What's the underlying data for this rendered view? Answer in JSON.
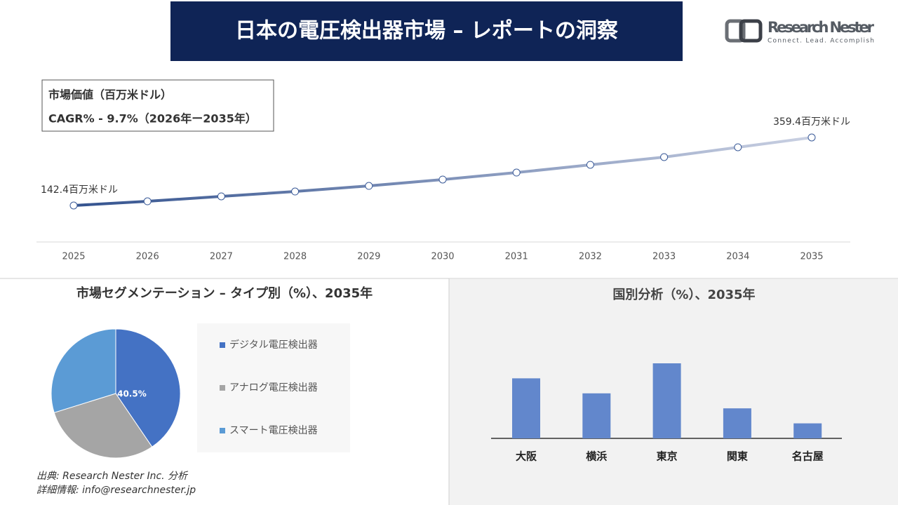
{
  "header": {
    "title": "日本の電圧検出器市場 – レポートの洞察",
    "logo_name": "Research Nester",
    "logo_tagline": "Connect. Lead. Accomplish"
  },
  "chart_data": [
    {
      "type": "line",
      "title": "市場価値（百万米ドル）",
      "subtitle": "CAGR% - 9.7%（2026年ー2035年）",
      "categories": [
        "2025",
        "2026",
        "2027",
        "2028",
        "2029",
        "2030",
        "2031",
        "2032",
        "2033",
        "2034",
        "2035"
      ],
      "values": [
        142.4,
        155.8,
        171.5,
        187.1,
        205.0,
        225.2,
        247.5,
        272.2,
        296.8,
        328.1,
        359.4
      ],
      "value_labels": [
        "142.4百万米ドル",
        null,
        null,
        null,
        null,
        null,
        null,
        null,
        null,
        null,
        "359.4百万米ドル"
      ],
      "colors": [
        "#34538f",
        "#c9d0e2"
      ]
    },
    {
      "type": "pie",
      "title": "市場セグメンテーション – タイプ別（%）、2035年",
      "categories": [
        "デジタル電圧検出器",
        "アナログ電圧検出器",
        "スマート電圧検出器"
      ],
      "values": [
        40.5,
        29.7,
        29.8
      ],
      "value_labels": [
        "40.5%",
        null,
        null
      ],
      "colors": [
        "#4472c4",
        "#a5a5a5",
        "#5b9bd5"
      ]
    },
    {
      "type": "bar",
      "title": "国別分析（%）、2035年",
      "categories": [
        "大阪",
        "横浜",
        "東京",
        "関東",
        "名古屋"
      ],
      "values": [
        28,
        21,
        35,
        14,
        7
      ],
      "color": "#6287cc"
    }
  ],
  "footer": {
    "source": "出典: Research Nester Inc. 分析",
    "contact": "詳細情報: info@researchnester.jp"
  }
}
